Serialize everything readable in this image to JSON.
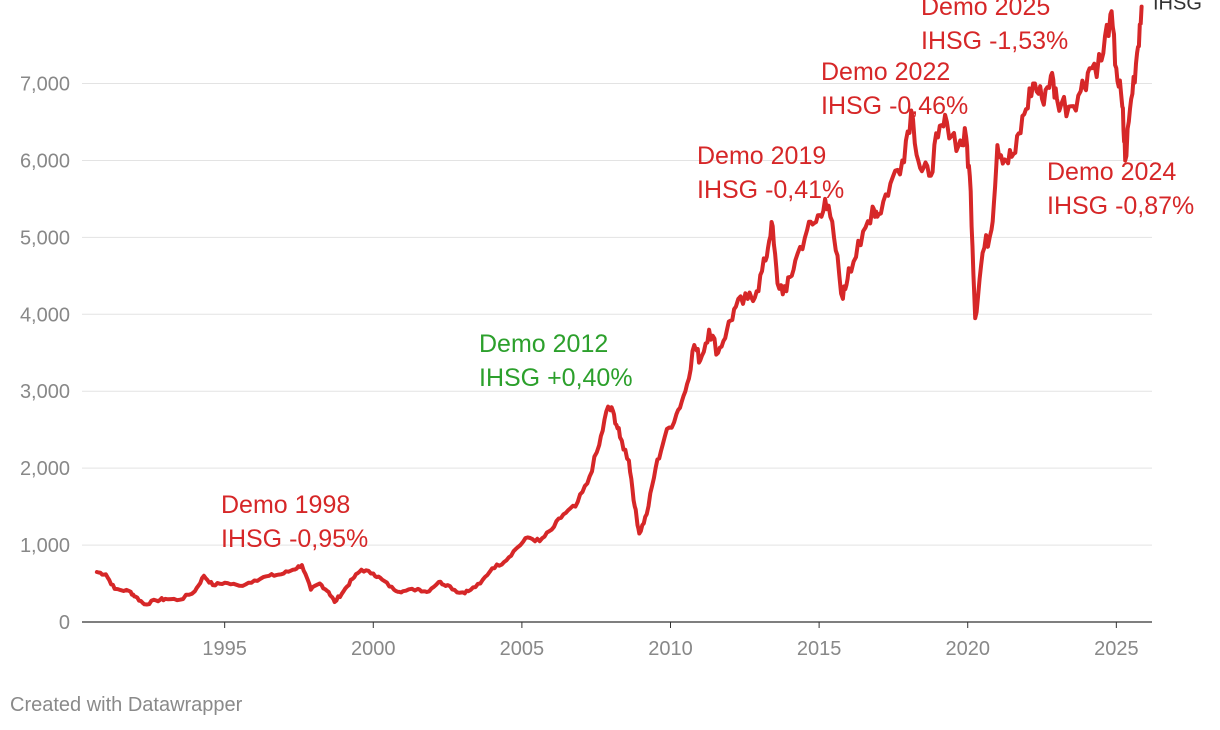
{
  "chart_data": {
    "type": "line",
    "title": "",
    "xlabel": "",
    "ylabel": "",
    "xlim": [
      1990.2,
      2026.2
    ],
    "ylim": [
      0,
      7800
    ],
    "grid": "horizontal",
    "y_ticks": [
      0,
      1000,
      2000,
      3000,
      4000,
      5000,
      6000,
      7000
    ],
    "y_tick_labels": [
      "0",
      "1,000",
      "2,000",
      "3,000",
      "4,000",
      "5,000",
      "6,000",
      "7,000"
    ],
    "x_ticks": [
      1995,
      2000,
      2005,
      2010,
      2015,
      2020,
      2025
    ],
    "x_tick_labels": [
      "1995",
      "2000",
      "2005",
      "2010",
      "2015",
      "2020",
      "2025"
    ],
    "series": [
      {
        "name": "IHSG",
        "color": "#d62728",
        "points": [
          [
            1990.7,
            650
          ],
          [
            1991.0,
            620
          ],
          [
            1991.3,
            430
          ],
          [
            1991.8,
            400
          ],
          [
            1992.0,
            330
          ],
          [
            1992.3,
            230
          ],
          [
            1992.7,
            280
          ],
          [
            1993.0,
            300
          ],
          [
            1993.5,
            290
          ],
          [
            1994.0,
            400
          ],
          [
            1994.3,
            600
          ],
          [
            1994.6,
            480
          ],
          [
            1995.0,
            510
          ],
          [
            1995.5,
            470
          ],
          [
            1996.0,
            540
          ],
          [
            1996.5,
            600
          ],
          [
            1996.9,
            620
          ],
          [
            1997.3,
            680
          ],
          [
            1997.6,
            740
          ],
          [
            1997.9,
            420
          ],
          [
            1998.2,
            500
          ],
          [
            1998.5,
            390
          ],
          [
            1998.7,
            260
          ],
          [
            1999.0,
            400
          ],
          [
            1999.3,
            560
          ],
          [
            1999.6,
            680
          ],
          [
            2000.0,
            630
          ],
          [
            2000.3,
            550
          ],
          [
            2000.7,
            420
          ],
          [
            2001.0,
            400
          ],
          [
            2001.5,
            430
          ],
          [
            2001.8,
            390
          ],
          [
            2002.2,
            520
          ],
          [
            2002.5,
            480
          ],
          [
            2002.9,
            380
          ],
          [
            2003.2,
            400
          ],
          [
            2003.6,
            500
          ],
          [
            2004.0,
            700
          ],
          [
            2004.4,
            780
          ],
          [
            2004.8,
            950
          ],
          [
            2005.2,
            1100
          ],
          [
            2005.6,
            1050
          ],
          [
            2006.0,
            1200
          ],
          [
            2006.4,
            1400
          ],
          [
            2006.8,
            1500
          ],
          [
            2007.2,
            1800
          ],
          [
            2007.6,
            2300
          ],
          [
            2007.9,
            2800
          ],
          [
            2008.1,
            2700
          ],
          [
            2008.3,
            2400
          ],
          [
            2008.6,
            2100
          ],
          [
            2008.8,
            1500
          ],
          [
            2008.95,
            1150
          ],
          [
            2009.2,
            1400
          ],
          [
            2009.5,
            2000
          ],
          [
            2009.8,
            2400
          ],
          [
            2010.2,
            2700
          ],
          [
            2010.5,
            3000
          ],
          [
            2010.8,
            3600
          ],
          [
            2011.0,
            3400
          ],
          [
            2011.3,
            3800
          ],
          [
            2011.6,
            3500
          ],
          [
            2011.9,
            3800
          ],
          [
            2012.2,
            4100
          ],
          [
            2012.6,
            4200
          ],
          [
            2012.9,
            4300
          ],
          [
            2013.2,
            4700
          ],
          [
            2013.4,
            5200
          ],
          [
            2013.6,
            4400
          ],
          [
            2013.9,
            4300
          ],
          [
            2014.2,
            4700
          ],
          [
            2014.6,
            5100
          ],
          [
            2014.9,
            5200
          ],
          [
            2015.2,
            5500
          ],
          [
            2015.5,
            5000
          ],
          [
            2015.8,
            4200
          ],
          [
            2016.0,
            4600
          ],
          [
            2016.4,
            4900
          ],
          [
            2016.8,
            5400
          ],
          [
            2017.0,
            5300
          ],
          [
            2017.4,
            5700
          ],
          [
            2017.8,
            6000
          ],
          [
            2018.1,
            6650
          ],
          [
            2018.4,
            5900
          ],
          [
            2018.7,
            5800
          ],
          [
            2019.0,
            6300
          ],
          [
            2019.3,
            6500
          ],
          [
            2019.7,
            6200
          ],
          [
            2019.95,
            6300
          ],
          [
            2020.1,
            5600
          ],
          [
            2020.25,
            3950
          ],
          [
            2020.5,
            4800
          ],
          [
            2020.8,
            5100
          ],
          [
            2021.0,
            6200
          ],
          [
            2021.3,
            6000
          ],
          [
            2021.6,
            6100
          ],
          [
            2021.9,
            6600
          ],
          [
            2022.2,
            7000
          ],
          [
            2022.5,
            6800
          ],
          [
            2022.8,
            7100
          ],
          [
            2023.0,
            6800
          ],
          [
            2023.4,
            6700
          ],
          [
            2023.8,
            6900
          ],
          [
            2024.1,
            7200
          ],
          [
            2024.5,
            7300
          ],
          [
            2024.8,
            7900
          ],
          [
            2025.0,
            7200
          ],
          [
            2025.2,
            6700
          ],
          [
            2025.3,
            6000
          ],
          [
            2025.5,
            6800
          ],
          [
            2025.7,
            7400
          ],
          [
            2025.85,
            8000
          ]
        ]
      }
    ],
    "annotations": [
      {
        "line1": "Demo 1998",
        "line2": "IHSG -0,95%",
        "color": "#d62728"
      },
      {
        "line1": "Demo 2012",
        "line2": "IHSG +0,40%",
        "color": "#2ca02c"
      },
      {
        "line1": "Demo 2019",
        "line2": "IHSG -0,41%",
        "color": "#d62728"
      },
      {
        "line1": "Demo 2022",
        "line2": "IHSG -0,46%",
        "color": "#d62728"
      },
      {
        "line1": "Demo 2025",
        "line2": "IHSG -1,53%",
        "color": "#d62728"
      },
      {
        "line1": "Demo 2024",
        "line2": "IHSG -0,87%",
        "color": "#d62728"
      }
    ]
  },
  "footer": {
    "credit": "Created with Datawrapper"
  }
}
